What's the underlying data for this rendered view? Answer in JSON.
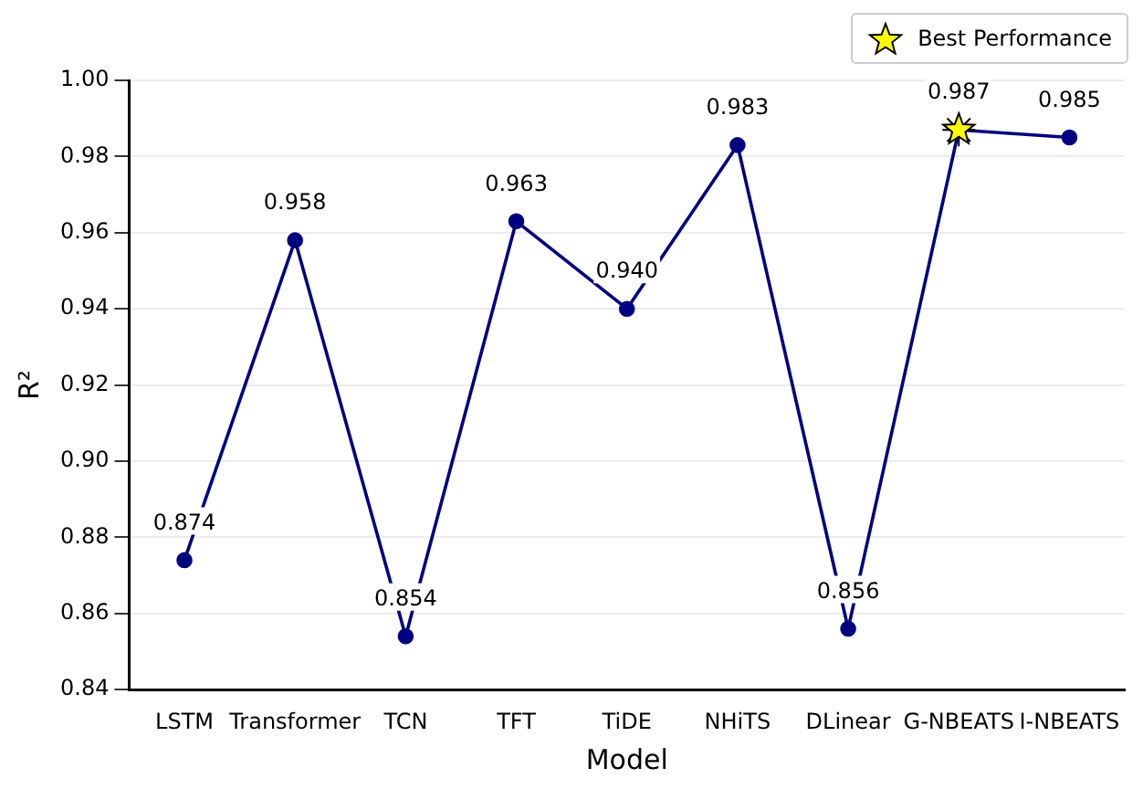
{
  "chart_data": {
    "type": "line",
    "xlabel": "Model",
    "ylabel": "R²",
    "categories": [
      "LSTM",
      "Transformer",
      "TCN",
      "TFT",
      "TiDE",
      "NHiTS",
      "DLinear",
      "G-NBEATS",
      "I-NBEATS"
    ],
    "series": [
      {
        "color": "#000080",
        "values": [
          0.874,
          0.958,
          0.854,
          0.963,
          0.94,
          0.983,
          0.856,
          0.987,
          0.985
        ],
        "value_labels": [
          "0.874",
          "0.958",
          "0.854",
          "0.963",
          "0.940",
          "0.983",
          "0.856",
          "0.987",
          "0.985"
        ],
        "marker": "circle"
      },
      {
        "type": "scatter",
        "name": "Best Performance",
        "color": "#ffff00",
        "x": [
          "G-NBEATS"
        ],
        "values": [
          0.987
        ],
        "marker": "star"
      }
    ],
    "ylim": [
      0.84,
      1.0
    ],
    "yticks": [
      0.84,
      0.86,
      0.88,
      {
        "value": 0.9,
        "label": "0.90"
      },
      0.92,
      0.94,
      0.96,
      0.98,
      {
        "value": 1.0,
        "label": "1.00"
      }
    ],
    "grid": "y",
    "legend": "top right",
    "line_style": "solid"
  }
}
